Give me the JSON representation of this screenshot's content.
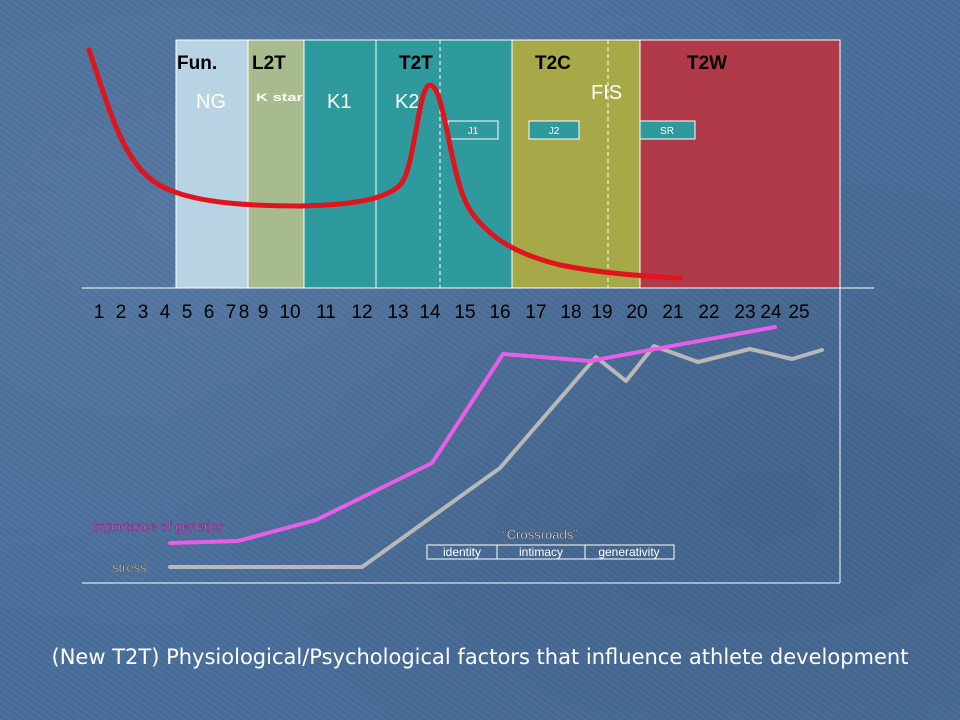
{
  "stages": {
    "headers": [
      "Fun.",
      "L2T",
      "T2T",
      "T2C",
      "T2W"
    ],
    "labels": [
      "NG",
      "K star",
      "K1",
      "K2",
      "FIS"
    ],
    "boxes": [
      "J1",
      "J2",
      "SR"
    ],
    "colors": {
      "fun": "#b8d3e4",
      "l2t": "#a8bb8e",
      "t2t": "#2e9a9e",
      "t2c": "#a7a848",
      "t2w": "#b03a4a",
      "header_text": "#000000",
      "label_text": "#ffffff"
    }
  },
  "ages": {
    "numbers": [
      "1",
      "2",
      "3",
      "4",
      "5",
      "6",
      "7",
      "8",
      "9",
      "10",
      "11",
      "12",
      "13",
      "14",
      "15",
      "16",
      "17",
      "18",
      "19",
      "20",
      "21",
      "22",
      "23",
      "24",
      "25"
    ],
    "color": "#000000"
  },
  "curve": {
    "color": "#e0141c"
  },
  "lower": {
    "genetics_label": "Importance of genetics",
    "stress_label": "stress",
    "crossroads_title": "“Crossroads”",
    "crossroads_boxes": [
      "identity",
      "intimacy",
      "generativity"
    ],
    "genetics_color": "#e85ee8",
    "stress_color": "#b8b8b8"
  },
  "caption": "(New T2T) Physiological/Psychological factors that influence athlete development"
}
